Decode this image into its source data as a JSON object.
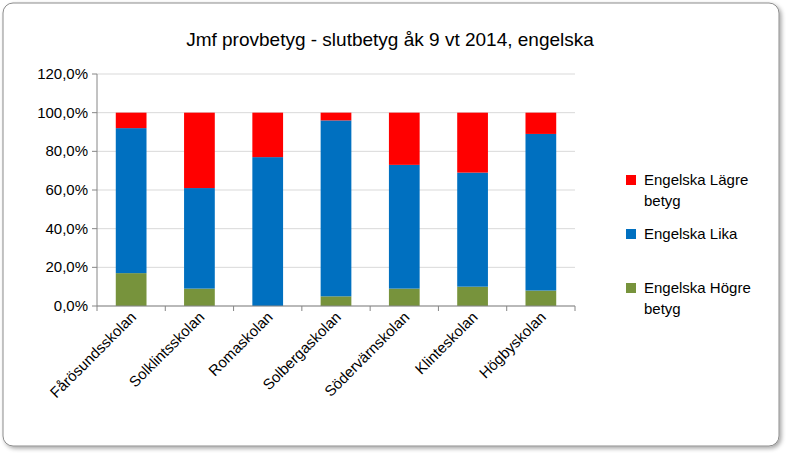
{
  "chart_data": {
    "type": "bar",
    "stacked": true,
    "grid": true,
    "legend": "right",
    "title": "Jmf provbetyg - slutbetyg åk 9 vt 2014, engelska",
    "categories": [
      "Fårösundsskolan",
      "Solklintsskolan",
      "Romaskolan",
      "Solbergaskolan",
      "Södervärnskolan",
      "Klinteskolan",
      "Högbyskolan"
    ],
    "series": [
      {
        "name": "Engelska Högre betyg",
        "color": "#77933c",
        "values": [
          17,
          9,
          0,
          5,
          9,
          10,
          8
        ]
      },
      {
        "name": "Engelska Lika",
        "color": "#0070c0",
        "values": [
          75,
          52,
          77,
          91,
          64,
          59,
          81
        ]
      },
      {
        "name": "Engelska Lägre betyg",
        "color": "#ff0000",
        "values": [
          8,
          39,
          23,
          4,
          27,
          31,
          11
        ]
      }
    ],
    "ylim": [
      0,
      120
    ],
    "yticks": [
      {
        "value": 0,
        "label": "0,0%"
      },
      {
        "value": 20,
        "label": "20,0%"
      },
      {
        "value": 40,
        "label": "40,0%"
      },
      {
        "value": 60,
        "label": "60,0%"
      },
      {
        "value": 80,
        "label": "80,0%"
      },
      {
        "value": 100,
        "label": "100,0%"
      },
      {
        "value": 120,
        "label": "120,0%"
      }
    ]
  }
}
